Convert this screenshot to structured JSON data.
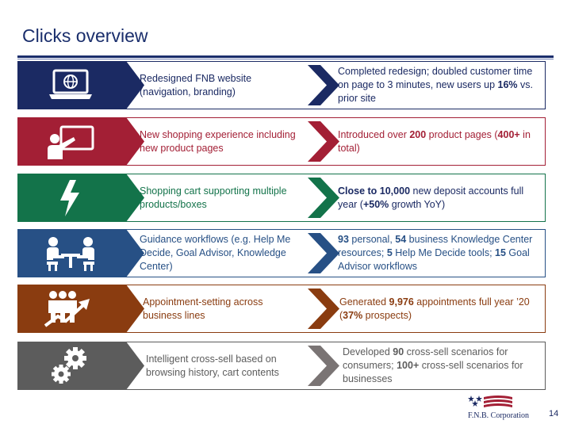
{
  "title": "Clicks overview",
  "rows": [
    {
      "icon": "website-globe-icon",
      "initiative": "Redesigned FNB website (navigation, branding)",
      "result": [
        {
          "t": "Completed redesign; doubled customer time on page to 3 minutes, new users up "
        },
        {
          "t": "16%",
          "b": true
        },
        {
          "t": " vs. prior site"
        }
      ]
    },
    {
      "icon": "presentation-icon",
      "initiative": "New shopping experience including new product pages",
      "result": [
        {
          "t": "Introduced over "
        },
        {
          "t": "200",
          "b": true
        },
        {
          "t": " product pages ("
        },
        {
          "t": "400+",
          "b": true
        },
        {
          "t": " in total)"
        }
      ]
    },
    {
      "icon": "lightning-icon",
      "initiative": "Shopping cart supporting multiple products/boxes",
      "result": [
        {
          "t": "Close to 10,000",
          "b": true
        },
        {
          "t": " new deposit accounts full year ("
        },
        {
          "t": "+50%",
          "b": true
        },
        {
          "t": " growth YoY)"
        }
      ]
    },
    {
      "icon": "meeting-icon",
      "initiative": "Guidance workflows (e.g. Help Me Decide, Goal Advisor, Knowledge Center)",
      "result": [
        {
          "t": "93",
          "b": true
        },
        {
          "t": " personal, "
        },
        {
          "t": "54",
          "b": true
        },
        {
          "t": " business Knowledge Center resources; "
        },
        {
          "t": "5",
          "b": true
        },
        {
          "t": " Help Me Decide tools; "
        },
        {
          "t": "15",
          "b": true
        },
        {
          "t": " Goal Advisor workflows"
        }
      ]
    },
    {
      "icon": "growth-people-icon",
      "initiative": "Appointment-setting across business lines",
      "result": [
        {
          "t": "Generated "
        },
        {
          "t": "9,976",
          "b": true
        },
        {
          "t": " appointments full year ’20 ("
        },
        {
          "t": "37%",
          "b": true
        },
        {
          "t": " prospects)"
        }
      ]
    },
    {
      "icon": "gears-icon",
      "initiative": "Intelligent cross-sell based on browsing history, cart contents",
      "result": [
        {
          "t": "Developed "
        },
        {
          "t": "90",
          "b": true
        },
        {
          "t": " cross-sell scenarios for consumers; "
        },
        {
          "t": "100+",
          "b": true
        },
        {
          "t": " cross-sell scenarios for businesses"
        }
      ]
    }
  ],
  "footer": {
    "logo_text": "F.N.B. Corporation",
    "page_number": "14"
  },
  "colors": {
    "navy": "#1b2a63",
    "red": "#a31f35",
    "green": "#13734a",
    "blue": "#275085",
    "brown": "#8a3c10",
    "gray": "#5c5c5c"
  }
}
